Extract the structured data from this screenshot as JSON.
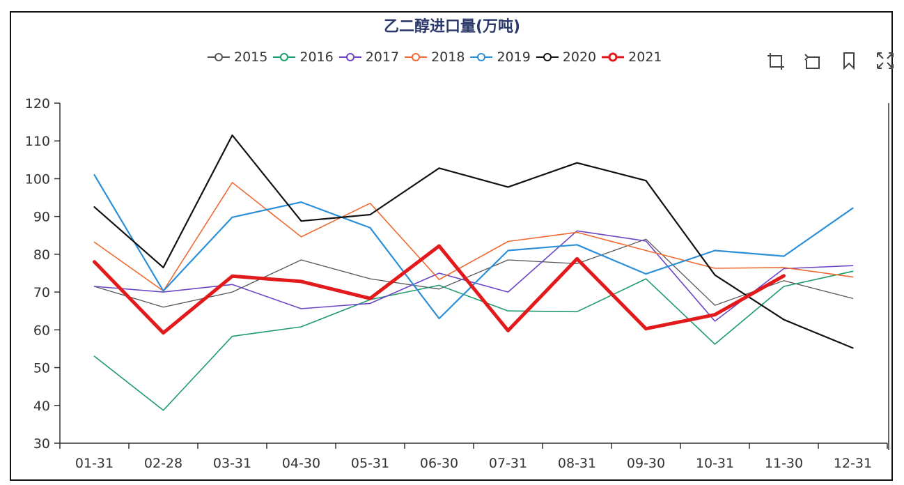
{
  "chart_data": {
    "type": "line",
    "title": "乙二醇进口量(万吨)",
    "categories": [
      "01-31",
      "02-28",
      "03-31",
      "04-30",
      "05-31",
      "06-30",
      "07-31",
      "08-31",
      "09-30",
      "10-31",
      "11-30",
      "12-31"
    ],
    "ylim": [
      30,
      120
    ],
    "yticks": [
      30,
      40,
      50,
      60,
      70,
      80,
      90,
      100,
      110,
      120
    ],
    "xlabel": "",
    "ylabel": "",
    "series": [
      {
        "name": "2015",
        "color": "#555555",
        "width": 1.3,
        "values": [
          71.5,
          66,
          70,
          78.5,
          73.5,
          70.8,
          78.5,
          77.5,
          84,
          66.5,
          73,
          68.3
        ]
      },
      {
        "name": "2016",
        "color": "#1f9a6b",
        "width": 1.6,
        "values": [
          53,
          38.7,
          58.3,
          60.8,
          68,
          71.8,
          65,
          64.8,
          73.5,
          56.2,
          71.5,
          75.5
        ]
      },
      {
        "name": "2017",
        "color": "#6b45c4",
        "width": 1.6,
        "values": [
          71.5,
          70,
          72,
          65.6,
          67,
          75,
          70,
          86.2,
          83.5,
          62.3,
          76.2,
          77
        ]
      },
      {
        "name": "2018",
        "color": "#ef6a32",
        "width": 1.6,
        "values": [
          83.2,
          70.3,
          99,
          84.6,
          93.5,
          73.3,
          83.4,
          85.8,
          81,
          76.3,
          76.5,
          74
        ]
      },
      {
        "name": "2019",
        "color": "#2b8fd8",
        "width": 2.2,
        "values": [
          101,
          70.3,
          89.8,
          93.8,
          87,
          63,
          81,
          82.5,
          74.8,
          81,
          79.5,
          92.2
        ]
      },
      {
        "name": "2020",
        "color": "#111111",
        "width": 2.2,
        "values": [
          92.5,
          76.5,
          111.5,
          88.8,
          90.5,
          102.8,
          97.8,
          104.2,
          99.5,
          74.5,
          62.7,
          55.2
        ]
      },
      {
        "name": "2021",
        "color": "#e31a1c",
        "width": 5,
        "values": [
          78,
          59.2,
          74.2,
          72.8,
          68.3,
          82.2,
          59.8,
          78.8,
          60.3,
          64,
          74.3,
          null
        ]
      }
    ]
  },
  "toolbox": {
    "icons": [
      "zoom-icon",
      "restore-icon",
      "save-image-icon",
      "fullscreen-icon"
    ]
  }
}
